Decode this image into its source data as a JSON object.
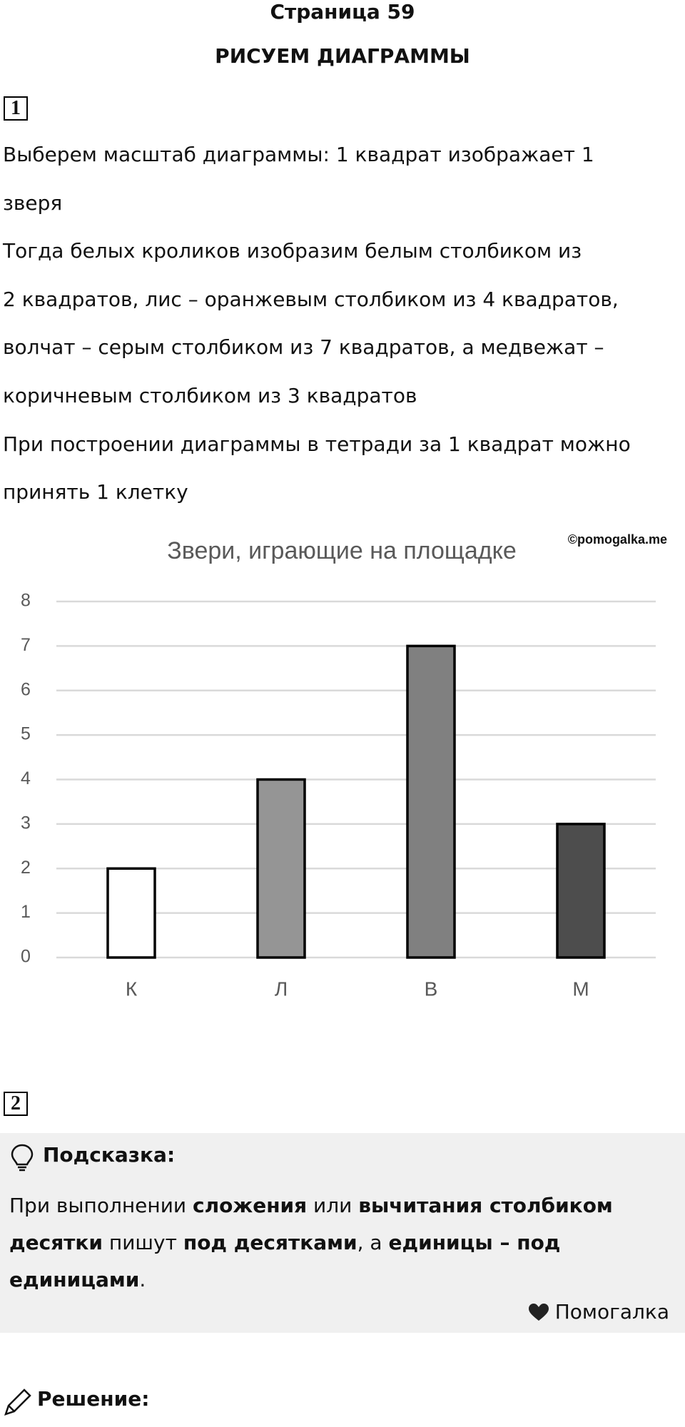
{
  "header": {
    "page": "Страница 59",
    "title": "РИСУЕМ ДИАГРАММЫ"
  },
  "task1": {
    "number": "1",
    "lines": [
      "Выберем масштаб диаграммы: 1 квадрат изображает 1",
      "зверя",
      "Тогда белых кроликов изобразим белым столбиком из",
      "2 квадратов, лис – оранжевым столбиком из 4 квадратов,",
      "волчат – серым столбиком из 7 квадратов, а медвежат –",
      "коричневым столбиком из 3 квадратов",
      "При построении диаграммы в тетради за 1 квадрат можно",
      "принять 1 клетку"
    ]
  },
  "chart_data": {
    "type": "bar",
    "title": "Звери, играющие на площадке",
    "watermark": "©pomogalka.me",
    "categories": [
      "К",
      "Л",
      "В",
      "М"
    ],
    "values": [
      2,
      4,
      7,
      3
    ],
    "colors": [
      "#ffffff",
      "#959595",
      "#808080",
      "#4d4d4d"
    ],
    "ylim": [
      0,
      8
    ],
    "yticks": [
      0,
      1,
      2,
      3,
      4,
      5,
      6,
      7,
      8
    ],
    "grid": true
  },
  "task2": {
    "number": "2",
    "hint": {
      "title": "Подсказка:",
      "runs": [
        {
          "text": "При выполнении ",
          "bold": false
        },
        {
          "text": "сложения",
          "bold": true
        },
        {
          "text": " или ",
          "bold": false
        },
        {
          "text": "вычитания столбиком десятки",
          "bold": true
        },
        {
          "text": " пишут ",
          "bold": false
        },
        {
          "text": "под десятками",
          "bold": true
        },
        {
          "text": ", а ",
          "bold": false
        },
        {
          "text": "единицы – под единицами",
          "bold": true
        },
        {
          "text": ".",
          "bold": false
        }
      ],
      "brand": "Помогалка"
    }
  },
  "solution": {
    "title": "Решение:"
  }
}
